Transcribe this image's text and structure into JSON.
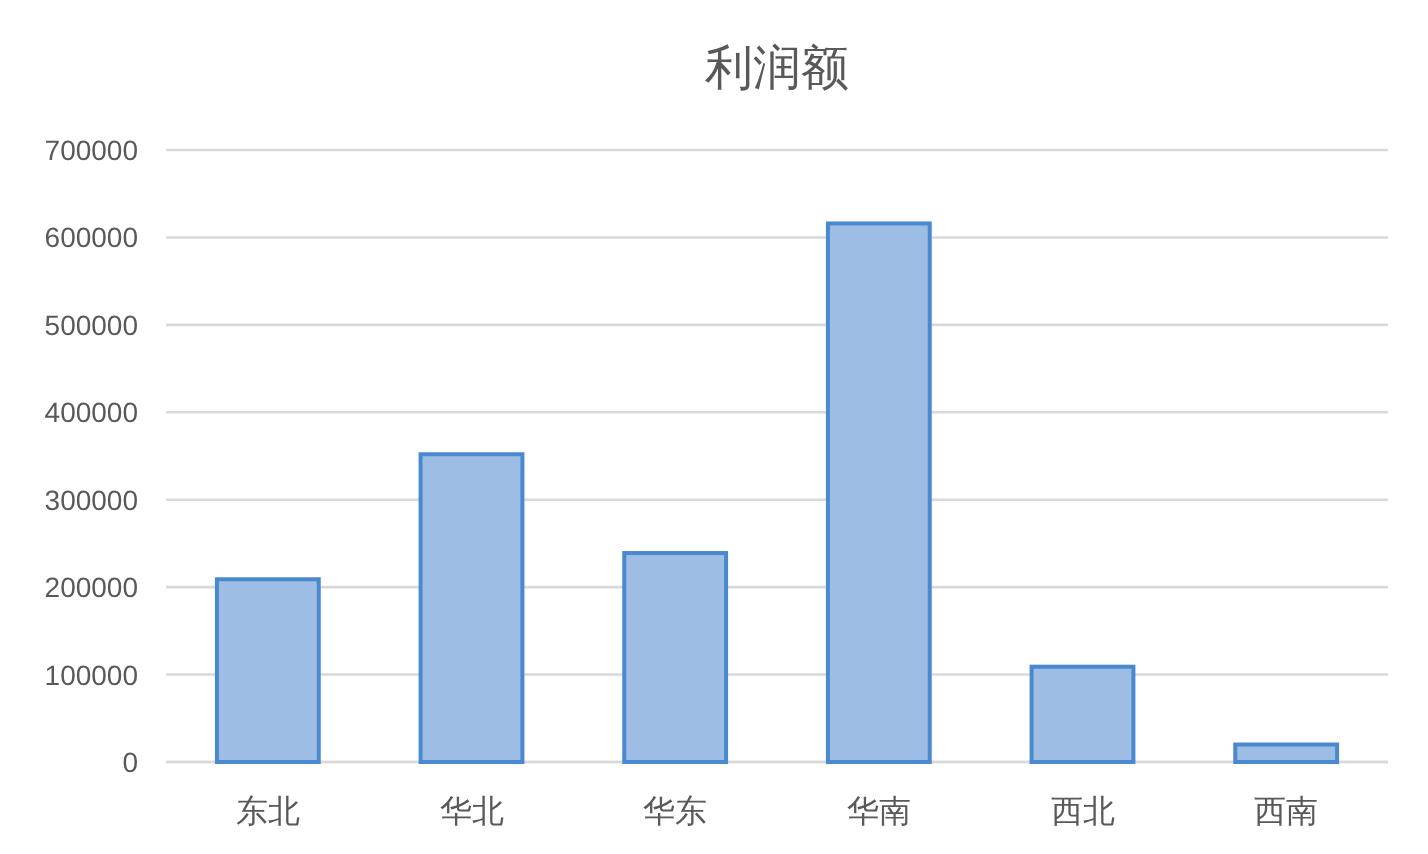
{
  "chart_data": {
    "type": "bar",
    "title": "利润额",
    "categories": [
      "东北",
      "华北",
      "华东",
      "华南",
      "西北",
      "西南"
    ],
    "values": [
      209000,
      352000,
      239000,
      616000,
      109000,
      20000
    ],
    "color": "#9dbde5",
    "ylim": [
      0,
      700000
    ],
    "yticks": [
      0,
      100000,
      200000,
      300000,
      400000,
      500000,
      600000,
      700000
    ],
    "grid": "y"
  }
}
